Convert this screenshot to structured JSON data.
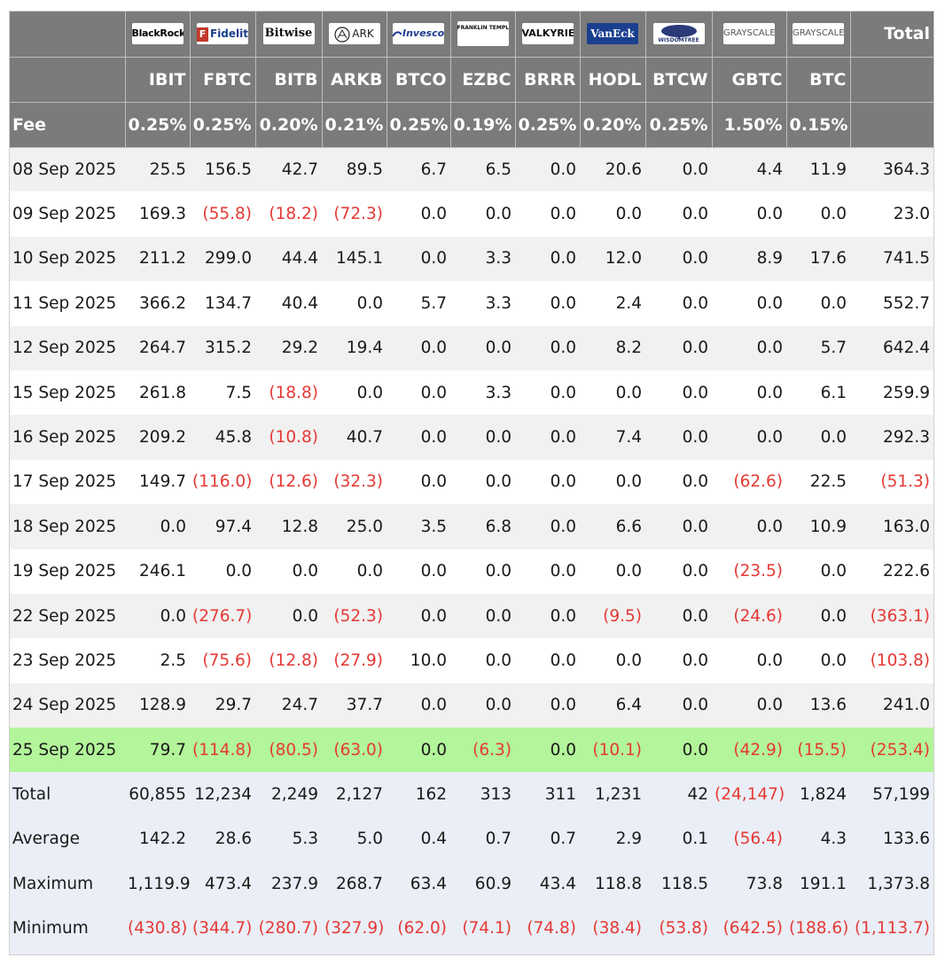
{
  "header": {
    "logos": [
      {
        "name": "blackrock-logo",
        "text": "BlackRock"
      },
      {
        "name": "fidelity-logo",
        "text": "Fidelity"
      },
      {
        "name": "bitwise-logo",
        "text": "Bitwise"
      },
      {
        "name": "ark-invest-logo",
        "text": "ARK"
      },
      {
        "name": "invesco-logo",
        "text": "Invesco"
      },
      {
        "name": "franklin-templeton-logo",
        "text": "FRANKLIN TEMPLETON"
      },
      {
        "name": "valkyrie-logo",
        "text": "VALKYRIE"
      },
      {
        "name": "vaneck-logo",
        "text": "VanEck"
      },
      {
        "name": "wisdomtree-logo",
        "text": "WISDOMTREE"
      },
      {
        "name": "grayscale-logo-gbtc",
        "text": "GRAYSCALE"
      },
      {
        "name": "grayscale-logo-btc",
        "text": "GRAYSCALE"
      }
    ],
    "total_label": "Total",
    "tickers": [
      "IBIT",
      "FBTC",
      "BITB",
      "ARKB",
      "BTCO",
      "EZBC",
      "BRRR",
      "HODL",
      "BTCW",
      "GBTC",
      "BTC"
    ],
    "fee_label": "Fee",
    "fees": [
      "0.25%",
      "0.25%",
      "0.20%",
      "0.21%",
      "0.25%",
      "0.19%",
      "0.25%",
      "0.20%",
      "0.25%",
      "1.50%",
      "0.15%"
    ]
  },
  "rows": [
    {
      "date": "08 Sep 2025",
      "values": [
        "25.5",
        "156.5",
        "42.7",
        "89.5",
        "6.7",
        "6.5",
        "0.0",
        "20.6",
        "0.0",
        "4.4",
        "11.9",
        "364.3"
      ]
    },
    {
      "date": "09 Sep 2025",
      "values": [
        "169.3",
        "(55.8)",
        "(18.2)",
        "(72.3)",
        "0.0",
        "0.0",
        "0.0",
        "0.0",
        "0.0",
        "0.0",
        "0.0",
        "23.0"
      ]
    },
    {
      "date": "10 Sep 2025",
      "values": [
        "211.2",
        "299.0",
        "44.4",
        "145.1",
        "0.0",
        "3.3",
        "0.0",
        "12.0",
        "0.0",
        "8.9",
        "17.6",
        "741.5"
      ]
    },
    {
      "date": "11 Sep 2025",
      "values": [
        "366.2",
        "134.7",
        "40.4",
        "0.0",
        "5.7",
        "3.3",
        "0.0",
        "2.4",
        "0.0",
        "0.0",
        "0.0",
        "552.7"
      ]
    },
    {
      "date": "12 Sep 2025",
      "values": [
        "264.7",
        "315.2",
        "29.2",
        "19.4",
        "0.0",
        "0.0",
        "0.0",
        "8.2",
        "0.0",
        "0.0",
        "5.7",
        "642.4"
      ]
    },
    {
      "date": "15 Sep 2025",
      "values": [
        "261.8",
        "7.5",
        "(18.8)",
        "0.0",
        "0.0",
        "3.3",
        "0.0",
        "0.0",
        "0.0",
        "0.0",
        "6.1",
        "259.9"
      ]
    },
    {
      "date": "16 Sep 2025",
      "values": [
        "209.2",
        "45.8",
        "(10.8)",
        "40.7",
        "0.0",
        "0.0",
        "0.0",
        "7.4",
        "0.0",
        "0.0",
        "0.0",
        "292.3"
      ]
    },
    {
      "date": "17 Sep 2025",
      "values": [
        "149.7",
        "(116.0)",
        "(12.6)",
        "(32.3)",
        "0.0",
        "0.0",
        "0.0",
        "0.0",
        "0.0",
        "(62.6)",
        "22.5",
        "(51.3)"
      ]
    },
    {
      "date": "18 Sep 2025",
      "values": [
        "0.0",
        "97.4",
        "12.8",
        "25.0",
        "3.5",
        "6.8",
        "0.0",
        "6.6",
        "0.0",
        "0.0",
        "10.9",
        "163.0"
      ]
    },
    {
      "date": "19 Sep 2025",
      "values": [
        "246.1",
        "0.0",
        "0.0",
        "0.0",
        "0.0",
        "0.0",
        "0.0",
        "0.0",
        "0.0",
        "(23.5)",
        "0.0",
        "222.6"
      ]
    },
    {
      "date": "22 Sep 2025",
      "values": [
        "0.0",
        "(276.7)",
        "0.0",
        "(52.3)",
        "0.0",
        "0.0",
        "0.0",
        "(9.5)",
        "0.0",
        "(24.6)",
        "0.0",
        "(363.1)"
      ]
    },
    {
      "date": "23 Sep 2025",
      "values": [
        "2.5",
        "(75.6)",
        "(12.8)",
        "(27.9)",
        "10.0",
        "0.0",
        "0.0",
        "0.0",
        "0.0",
        "0.0",
        "0.0",
        "(103.8)"
      ]
    },
    {
      "date": "24 Sep 2025",
      "values": [
        "128.9",
        "29.7",
        "24.7",
        "37.7",
        "0.0",
        "0.0",
        "0.0",
        "6.4",
        "0.0",
        "0.0",
        "13.6",
        "241.0"
      ]
    },
    {
      "date": "25 Sep 2025",
      "highlight": true,
      "values": [
        "79.7",
        "(114.8)",
        "(80.5)",
        "(63.0)",
        "0.0",
        "(6.3)",
        "0.0",
        "(10.1)",
        "0.0",
        "(42.9)",
        "(15.5)",
        "(253.4)"
      ]
    }
  ],
  "summary": [
    {
      "label": "Total",
      "values": [
        "60,855",
        "12,234",
        "2,249",
        "2,127",
        "162",
        "313",
        "311",
        "1,231",
        "42",
        "(24,147)",
        "1,824",
        "57,199"
      ]
    },
    {
      "label": "Average",
      "values": [
        "142.2",
        "28.6",
        "5.3",
        "5.0",
        "0.4",
        "0.7",
        "0.7",
        "2.9",
        "0.1",
        "(56.4)",
        "4.3",
        "133.6"
      ]
    },
    {
      "label": "Maximum",
      "values": [
        "1,119.9",
        "473.4",
        "237.9",
        "268.7",
        "63.4",
        "60.9",
        "43.4",
        "118.8",
        "118.5",
        "73.8",
        "191.1",
        "1,373.8"
      ]
    },
    {
      "label": "Minimum",
      "values": [
        "(430.8)",
        "(344.7)",
        "(280.7)",
        "(327.9)",
        "(62.0)",
        "(74.1)",
        "(74.8)",
        "(38.4)",
        "(53.8)",
        "(642.5)",
        "(188.6)",
        "(1,113.7)"
      ]
    }
  ],
  "colors": {
    "header_bg": "#7b7b7b",
    "negative": "#e53935",
    "highlight_row": "#b3f59a",
    "summary_bg": "#eaeef6",
    "stripe": "#f1f1f1"
  }
}
